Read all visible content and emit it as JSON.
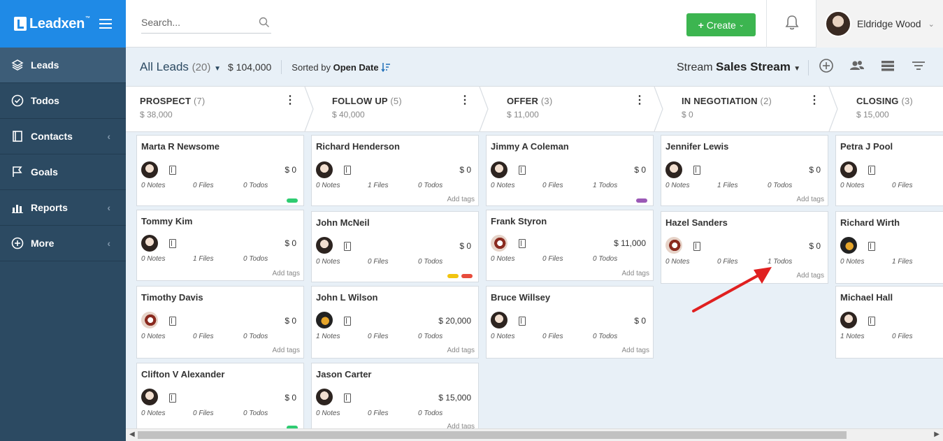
{
  "brand": {
    "name": "Leadxen",
    "tm": "™"
  },
  "sidebar": {
    "items": [
      {
        "label": "Leads",
        "icon": "layers-icon",
        "active": true
      },
      {
        "label": "Todos",
        "icon": "check-circle-icon"
      },
      {
        "label": "Contacts",
        "icon": "contact-book-icon",
        "chevron": "‹"
      },
      {
        "label": "Goals",
        "icon": "flag-icon"
      },
      {
        "label": "Reports",
        "icon": "bar-chart-icon",
        "chevron": "‹"
      },
      {
        "label": "More",
        "icon": "plus-circle-icon",
        "chevron": "‹"
      }
    ]
  },
  "topbar": {
    "search_placeholder": "Search...",
    "create_label": "Create",
    "user_name": "Eldridge Wood"
  },
  "subheader": {
    "title": "All Leads",
    "count": "(20)",
    "amount": "$ 104,000",
    "sorted_prefix": "Sorted by",
    "sorted_field": "Open Date",
    "stream_prefix": "Stream",
    "stream_name": "Sales Stream"
  },
  "stages": [
    {
      "name": "PROSPECT",
      "count": "(7)",
      "amount": "$ 38,000"
    },
    {
      "name": "FOLLOW UP",
      "count": "(5)",
      "amount": "$ 40,000"
    },
    {
      "name": "OFFER",
      "count": "(3)",
      "amount": "$ 11,000"
    },
    {
      "name": "IN NEGOTIATION",
      "count": "(2)",
      "amount": "$ 0"
    },
    {
      "name": "CLOSING",
      "count": "(3)",
      "amount": "$ 15,000"
    }
  ],
  "cards": {
    "c0": {
      "name": "Marta R Newsome",
      "value": "$ 0",
      "notes": "0 Notes",
      "files": "0 Files",
      "todos": "0 Todos"
    },
    "c1": {
      "name": "Tommy Kim",
      "value": "$ 0",
      "notes": "0 Notes",
      "files": "1 Files",
      "todos": "0 Todos",
      "tags": "Add tags"
    },
    "c2": {
      "name": "Timothy Davis",
      "value": "$ 0",
      "notes": "0 Notes",
      "files": "0 Files",
      "todos": "0 Todos",
      "tags": "Add tags"
    },
    "c3": {
      "name": "Clifton V Alexander",
      "value": "$ 0",
      "notes": "0 Notes",
      "files": "0 Files",
      "todos": "0 Todos"
    },
    "c4": {
      "name": "Richard Henderson",
      "value": "$ 0",
      "notes": "0 Notes",
      "files": "1 Files",
      "todos": "0 Todos",
      "tags": "Add tags"
    },
    "c5": {
      "name": "John McNeil",
      "value": "$ 0",
      "notes": "0 Notes",
      "files": "0 Files",
      "todos": "0 Todos"
    },
    "c6": {
      "name": "John L Wilson",
      "value": "$ 20,000",
      "notes": "1 Notes",
      "files": "0 Files",
      "todos": "0 Todos",
      "tags": "Add tags"
    },
    "c7": {
      "name": "Jason Carter",
      "value": "$ 15,000",
      "notes": "0 Notes",
      "files": "0 Files",
      "todos": "0 Todos",
      "tags": "Add tags"
    },
    "c8": {
      "name": "Jimmy A Coleman",
      "value": "$ 0",
      "notes": "0 Notes",
      "files": "0 Files",
      "todos": "1 Todos"
    },
    "c9": {
      "name": "Frank Styron",
      "value": "$ 11,000",
      "notes": "0 Notes",
      "files": "0 Files",
      "todos": "0 Todos",
      "tags": "Add tags"
    },
    "c10": {
      "name": "Bruce Willsey",
      "value": "$ 0",
      "notes": "0 Notes",
      "files": "0 Files",
      "todos": "0 Todos",
      "tags": "Add tags"
    },
    "c11": {
      "name": "Jennifer Lewis",
      "value": "$ 0",
      "notes": "0 Notes",
      "files": "1 Files",
      "todos": "0 Todos",
      "tags": "Add tags"
    },
    "c12": {
      "name": "Hazel Sanders",
      "value": "$ 0",
      "notes": "0 Notes",
      "files": "0 Files",
      "todos": "1 Todos",
      "tags": "Add tags"
    },
    "c13": {
      "name": "Petra J Pool",
      "notes": "0 Notes",
      "files": "0 Files"
    },
    "c14": {
      "name": "Richard Wirth",
      "notes": "0 Notes",
      "files": "1 Files"
    },
    "c15": {
      "name": "Michael Hall",
      "notes": "1 Notes",
      "files": "0 Files"
    }
  },
  "tag_colors": {
    "green": "#2ecc71",
    "purple": "#9b59b6",
    "yellow": "#f1c40f",
    "red": "#e74c3c"
  },
  "colors": {
    "brand_blue": "#1f8ae6",
    "sidebar": "#2c4a62",
    "create_green": "#3cb550",
    "annotation_arrow": "#e02020"
  }
}
